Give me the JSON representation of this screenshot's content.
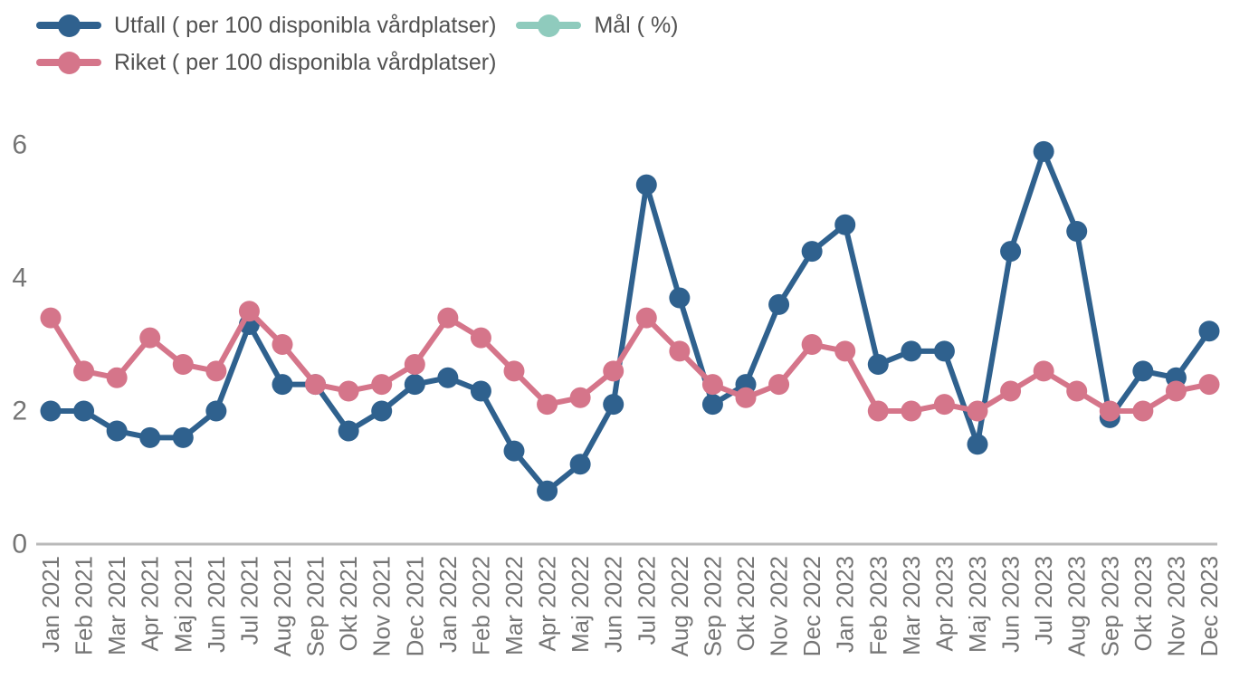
{
  "legend": {
    "items": [
      {
        "id": "utfall",
        "label": "Utfall ( per 100 disponibla vårdplatser)",
        "color": "#2f618e"
      },
      {
        "id": "mal",
        "label": "Mål ( %)",
        "color": "#8fcbbd"
      },
      {
        "id": "riket",
        "label": "Riket ( per 100 disponibla vårdplatser)",
        "color": "#d5758a"
      }
    ]
  },
  "chart_data": {
    "type": "line",
    "title": "",
    "xlabel": "",
    "ylabel": "",
    "categories": [
      "Jan 2021",
      "Feb 2021",
      "Mar 2021",
      "Apr 2021",
      "Maj 2021",
      "Jun 2021",
      "Jul 2021",
      "Aug 2021",
      "Sep 2021",
      "Okt 2021",
      "Nov 2021",
      "Dec 2021",
      "Jan 2022",
      "Feb 2022",
      "Mar 2022",
      "Apr 2022",
      "Maj 2022",
      "Jun 2022",
      "Jul 2022",
      "Aug 2022",
      "Sep 2022",
      "Okt 2022",
      "Nov 2022",
      "Dec 2022",
      "Jan 2023",
      "Feb 2023",
      "Mar 2023",
      "Apr 2023",
      "Maj 2023",
      "Jun 2023",
      "Jul 2023",
      "Aug 2023",
      "Sep 2023",
      "Okt 2023",
      "Nov 2023",
      "Dec 2023"
    ],
    "series": [
      {
        "id": "utfall",
        "name": "Utfall ( per 100 disponibla vårdplatser)",
        "color": "#2f618e",
        "values": [
          2.0,
          2.0,
          1.7,
          1.6,
          1.6,
          2.0,
          3.3,
          2.4,
          2.4,
          1.7,
          2.0,
          2.4,
          2.5,
          2.3,
          1.4,
          0.8,
          1.2,
          2.1,
          5.4,
          3.7,
          2.1,
          2.4,
          3.6,
          4.4,
          4.8,
          2.7,
          2.9,
          2.9,
          1.5,
          4.4,
          5.9,
          4.7,
          1.9,
          2.6,
          2.5,
          3.2
        ]
      },
      {
        "id": "riket",
        "name": "Riket ( per 100 disponibla vårdplatser)",
        "color": "#d5758a",
        "values": [
          3.4,
          2.6,
          2.5,
          3.1,
          2.7,
          2.6,
          3.5,
          3.0,
          2.4,
          2.3,
          2.4,
          2.7,
          3.4,
          3.1,
          2.6,
          2.1,
          2.2,
          2.6,
          3.4,
          2.9,
          2.4,
          2.2,
          2.4,
          3.0,
          2.9,
          2.0,
          2.0,
          2.1,
          2.0,
          2.3,
          2.6,
          2.3,
          2.0,
          2.0,
          2.3,
          2.4
        ]
      },
      {
        "id": "mal",
        "name": "Mål ( %)",
        "color": "#8fcbbd",
        "values": []
      }
    ],
    "yticks": [
      0,
      2,
      4,
      6
    ],
    "ylim": [
      0,
      6.5
    ],
    "grid": false,
    "legend_position": "top-left",
    "axis_text_color": "#757575",
    "axis_line_color": "#b9b9b9"
  }
}
